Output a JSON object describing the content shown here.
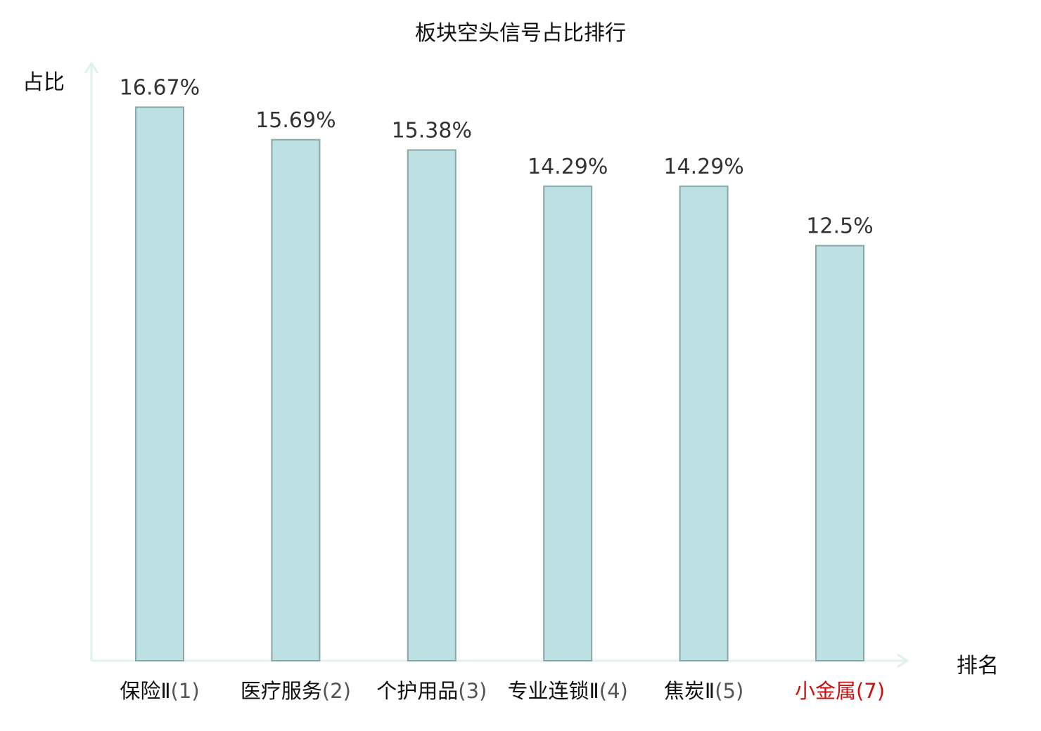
{
  "chart_data": {
    "type": "bar",
    "title": "板块空头信号占比排行",
    "ylabel": "占比",
    "xlabel": "排名",
    "categories": [
      {
        "name": "保险Ⅱ",
        "rank": "(1)",
        "highlight": false
      },
      {
        "name": "医疗服务",
        "rank": "(2)",
        "highlight": false
      },
      {
        "name": "个护用品",
        "rank": "(3)",
        "highlight": false
      },
      {
        "name": "专业连锁Ⅱ",
        "rank": "(4)",
        "highlight": false
      },
      {
        "name": "焦炭Ⅱ",
        "rank": "(5)",
        "highlight": false
      },
      {
        "name": "小金属",
        "rank": "(7)",
        "highlight": true
      }
    ],
    "values": [
      16.67,
      15.69,
      15.38,
      14.29,
      14.29,
      12.5
    ],
    "value_labels": [
      "16.67%",
      "15.69%",
      "15.38%",
      "14.29%",
      "14.29%",
      "12.5%"
    ],
    "ylim": [
      0,
      18
    ],
    "grid": false,
    "colors": {
      "bar_fill": "#bde0e2",
      "bar_stroke": "#8aa6a8",
      "axis": "#dff2ee",
      "highlight": "#cc1111"
    }
  }
}
